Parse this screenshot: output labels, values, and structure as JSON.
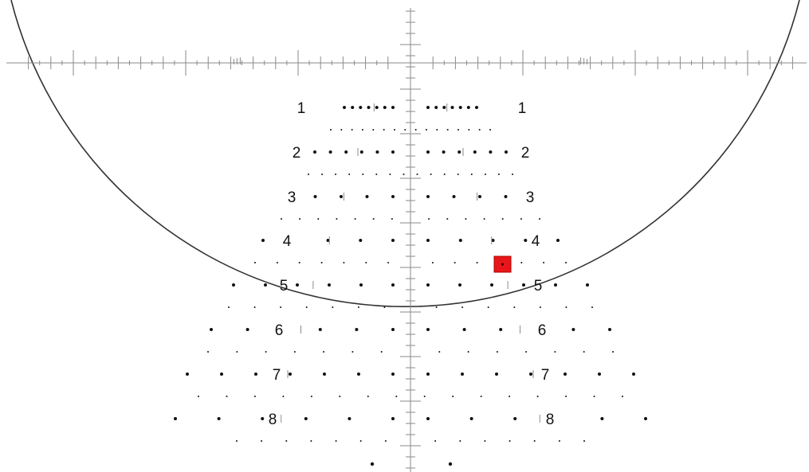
{
  "reticle": {
    "row_labels": [
      "1",
      "2",
      "3",
      "4",
      "5",
      "6",
      "7",
      "8"
    ],
    "rows": [
      {
        "label": "1",
        "solid_dots": 14,
        "fine_dots": 16
      },
      {
        "label": "2",
        "solid_dots": 12,
        "fine_dots": 16
      },
      {
        "label": "3",
        "solid_dots": 10,
        "fine_dots": 15
      },
      {
        "label": "4",
        "solid_dots": 11,
        "fine_dots": 15
      },
      {
        "label": "5",
        "solid_dots": 12,
        "fine_dots": 15
      },
      {
        "label": "6",
        "solid_dots": 13,
        "fine_dots": 15
      },
      {
        "label": "7",
        "solid_dots": 14,
        "fine_dots": 16
      },
      {
        "label": "8",
        "solid_dots": 12,
        "fine_dots": 15
      }
    ],
    "target_marker": {
      "color": "#e8161a",
      "row_between": [
        "4",
        "5"
      ]
    },
    "colors": {
      "outline": "#333333",
      "ticks": "#8a8a8a",
      "dots": "#111111"
    }
  }
}
